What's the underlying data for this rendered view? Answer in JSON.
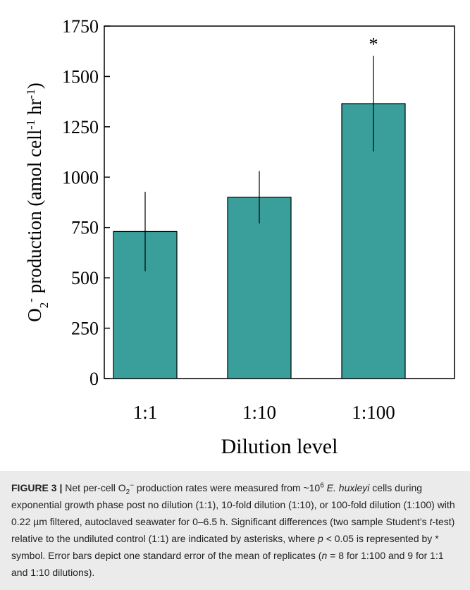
{
  "chart_data": {
    "type": "bar",
    "ylabel": [
      {
        "text": "O"
      },
      {
        "text": "2",
        "sub": true
      },
      {
        "text": "-",
        "sup": true
      },
      {
        "text": " production (amol cell"
      },
      {
        "text": "-1",
        "sup": true
      },
      {
        "text": " hr"
      },
      {
        "text": "-1",
        "sup": true
      },
      {
        "text": ")"
      }
    ],
    "xlabel": "Dilution level",
    "categories": [
      "1:1",
      "1:10",
      "1:100"
    ],
    "values": [
      730,
      900,
      1365
    ],
    "errors": [
      197,
      130,
      237
    ],
    "color": "#3a9e9a",
    "annotations": [
      "*"
    ],
    "ylim": [
      0,
      1750
    ],
    "yticks": [
      0,
      250,
      500,
      750,
      1000,
      1250,
      1500,
      1750
    ]
  },
  "caption": [
    {
      "text": "FIGURE 3 |",
      "bold": true
    },
    {
      "text": " Net per-cell O"
    },
    {
      "text": "2",
      "sub": true
    },
    {
      "text": "−",
      "sup": true
    },
    {
      "text": " production rates were measured from ~10"
    },
    {
      "text": "6",
      "sup": true
    },
    {
      "text": " E. huxleyi",
      "italic": true
    },
    {
      "text": " cells during exponential growth phase post no dilution (1:1), 10-fold dilution (1:10), or 100-fold dilution (1:100) with 0.22 µm filtered, autoclaved seawater for 0–6.5 h. Significant differences (two sample Student’s "
    },
    {
      "text": "t",
      "italic": true
    },
    {
      "text": "-test) relative to the undiluted control (1:1) are indicated by asterisks, where "
    },
    {
      "text": "p",
      "italic": true
    },
    {
      "text": " < 0.05 is represented by * symbol. Error bars depict one standard error of the mean of replicates ("
    },
    {
      "text": "n",
      "italic": true
    },
    {
      "text": " = 8 for 1:100 and 9 for 1:1 and 1:10 dilutions)."
    }
  ]
}
